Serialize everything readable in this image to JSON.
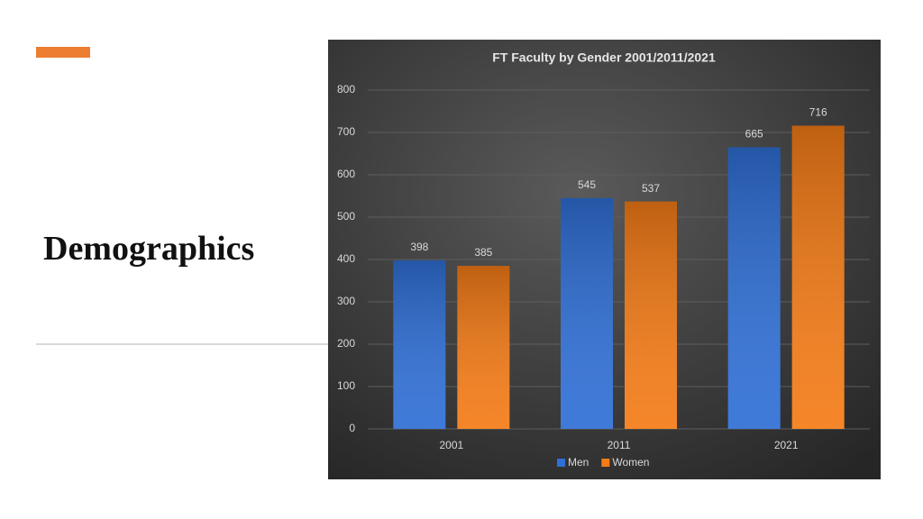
{
  "slide": {
    "title": "Demographics"
  },
  "chart_data": {
    "type": "bar",
    "title": "FT Faculty by Gender 2001/2011/2021",
    "categories": [
      "2001",
      "2011",
      "2021"
    ],
    "series": [
      {
        "name": "Men",
        "color": "#2f6fd6",
        "values": [
          398,
          545,
          665
        ]
      },
      {
        "name": "Women",
        "color": "#f47b16",
        "values": [
          385,
          537,
          716
        ]
      }
    ],
    "ylim": [
      0,
      800
    ],
    "yticks": [
      0,
      100,
      200,
      300,
      400,
      500,
      600,
      700,
      800
    ],
    "grid": true,
    "legend": "bottom"
  }
}
